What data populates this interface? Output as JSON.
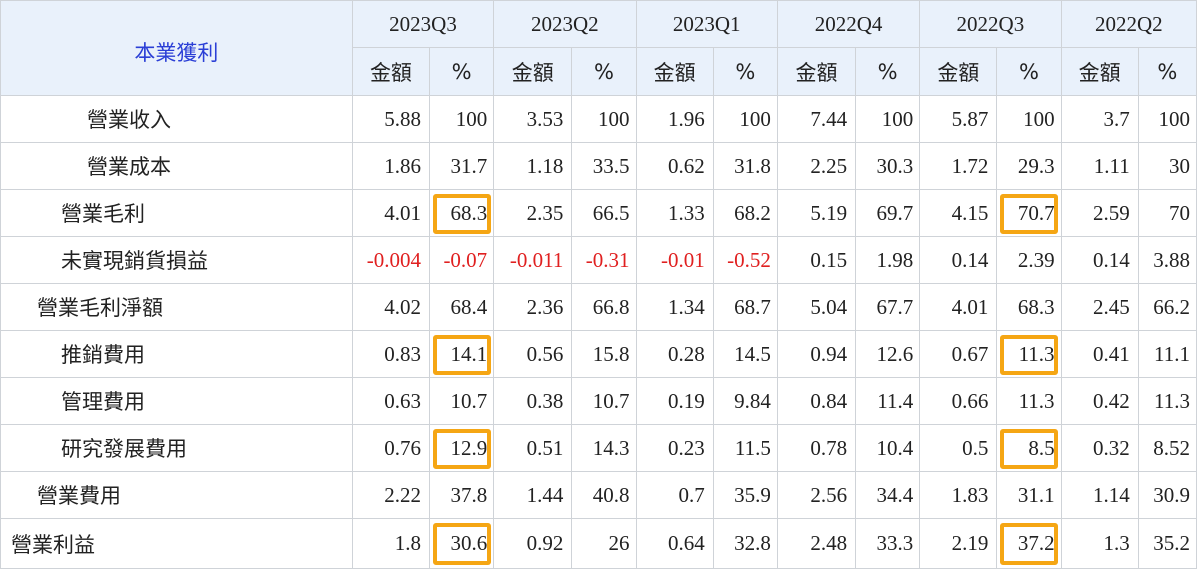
{
  "corner_label": "本業獲利",
  "quarters": [
    "2023Q3",
    "2023Q2",
    "2023Q1",
    "2022Q4",
    "2022Q3",
    "2022Q2"
  ],
  "subheaders": {
    "amount": "金額",
    "percent": "%"
  },
  "rows": [
    {
      "label": "營業收入",
      "cells": [
        "5.88",
        "100",
        "3.53",
        "100",
        "1.96",
        "100",
        "7.44",
        "100",
        "5.87",
        "100",
        "3.7",
        "100"
      ]
    },
    {
      "label": "營業成本",
      "cells": [
        "1.86",
        "31.7",
        "1.18",
        "33.5",
        "0.62",
        "31.8",
        "2.25",
        "30.3",
        "1.72",
        "29.3",
        "1.11",
        "30"
      ]
    },
    {
      "label": "營業毛利",
      "cells": [
        "4.01",
        "68.3",
        "2.35",
        "66.5",
        "1.33",
        "68.2",
        "5.19",
        "69.7",
        "4.15",
        "70.7",
        "2.59",
        "70"
      ]
    },
    {
      "label": "未實現銷貨損益",
      "cells": [
        "-0.004",
        "-0.07",
        "-0.011",
        "-0.31",
        "-0.01",
        "-0.52",
        "0.15",
        "1.98",
        "0.14",
        "2.39",
        "0.14",
        "3.88"
      ]
    },
    {
      "label": "營業毛利淨額",
      "cells": [
        "4.02",
        "68.4",
        "2.36",
        "66.8",
        "1.34",
        "68.7",
        "5.04",
        "67.7",
        "4.01",
        "68.3",
        "2.45",
        "66.2"
      ]
    },
    {
      "label": "推銷費用",
      "cells": [
        "0.83",
        "14.1",
        "0.56",
        "15.8",
        "0.28",
        "14.5",
        "0.94",
        "12.6",
        "0.67",
        "11.3",
        "0.41",
        "11.1"
      ]
    },
    {
      "label": "管理費用",
      "cells": [
        "0.63",
        "10.7",
        "0.38",
        "10.7",
        "0.19",
        "9.84",
        "0.84",
        "11.4",
        "0.66",
        "11.3",
        "0.42",
        "11.3"
      ]
    },
    {
      "label": "研究發展費用",
      "cells": [
        "0.76",
        "12.9",
        "0.51",
        "14.3",
        "0.23",
        "11.5",
        "0.78",
        "10.4",
        "0.5",
        "8.5",
        "0.32",
        "8.52"
      ]
    },
    {
      "label": "營業費用",
      "cells": [
        "2.22",
        "37.8",
        "1.44",
        "40.8",
        "0.7",
        "35.9",
        "2.56",
        "34.4",
        "1.83",
        "31.1",
        "1.14",
        "30.9"
      ]
    },
    {
      "label": "營業利益",
      "cells": [
        "1.8",
        "30.6",
        "0.92",
        "26",
        "0.64",
        "32.8",
        "2.48",
        "33.3",
        "2.19",
        "37.2",
        "1.3",
        "35.2"
      ]
    }
  ],
  "colors": {
    "highlight": "#f5a614",
    "negative": "#e02020",
    "header_bg": "#e9f1fb",
    "corner_text": "#2b3fd6"
  }
}
